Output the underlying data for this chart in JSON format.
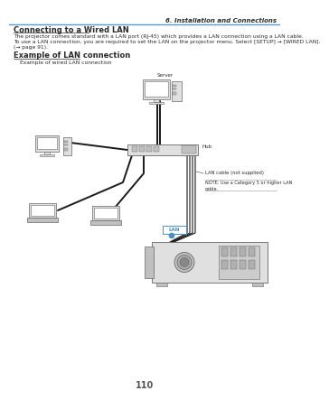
{
  "page_number": "110",
  "header_text": "6. Installation and Connections",
  "header_line_color": "#5b9bd5",
  "section_title": "Connecting to a Wired LAN",
  "body_text_1": "The projector comes standard with a LAN port (RJ-45) which provides a LAN connection using a LAN cable.",
  "body_text_2": "To use a LAN connection, you are required to set the LAN on the projector menu. Select [SETUP] → [WIRED LAN].",
  "body_text_3": "(→ page 91).",
  "example_title": "Example of LAN connection",
  "example_subtitle": "Example of wired LAN connection",
  "label_server": "Server",
  "label_hub": "Hub",
  "label_lan_cable": "LAN cable (not supplied)",
  "label_note": "NOTE: Use a Category 5 or higher LAN\ncable.",
  "label_lan": "LAN",
  "bg_color": "#ffffff",
  "text_color": "#2a2a2a",
  "diagram_color": "#666666",
  "diagram_light": "#e0e0e0",
  "diagram_mid": "#c0c0c0",
  "diagram_dark": "#888888",
  "note_line_color": "#999999",
  "lan_label_color": "#4a90c4",
  "cable_color": "#1a1a1a",
  "page_num_color": "#555555"
}
